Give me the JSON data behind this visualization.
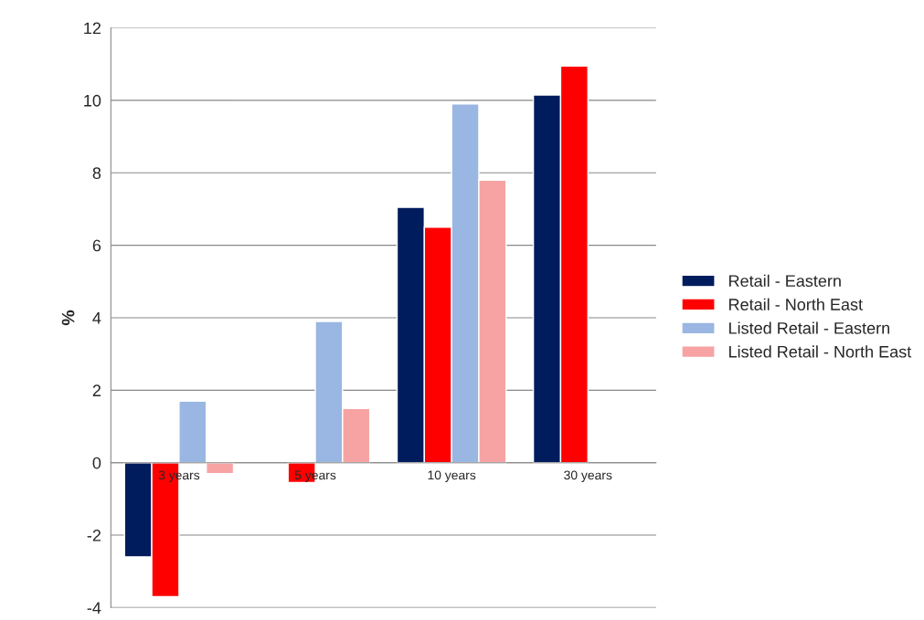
{
  "chart_data": {
    "type": "bar",
    "ylabel": "%",
    "categories": [
      "3 years",
      "5 years",
      "10 years",
      "30 years"
    ],
    "series": [
      {
        "name": "Retail - Eastern",
        "color": "#001c5c",
        "values": [
          -2.6,
          null,
          7.05,
          10.15
        ]
      },
      {
        "name": "Retail - North East",
        "color": "#ff0000",
        "values": [
          -3.7,
          -0.55,
          6.5,
          10.95
        ]
      },
      {
        "name": "Listed Retail - Eastern",
        "color": "#9ab6e2",
        "values": [
          1.7,
          3.9,
          9.9,
          null
        ]
      },
      {
        "name": "Listed Retail - North East",
        "color": "#f7a3a3",
        "values": [
          -0.3,
          1.5,
          7.8,
          null
        ]
      }
    ],
    "ylim": [
      -4,
      12
    ],
    "yticks": [
      -4,
      -2,
      0,
      2,
      4,
      6,
      8,
      10,
      12
    ],
    "grid": "y",
    "legend": "right"
  }
}
